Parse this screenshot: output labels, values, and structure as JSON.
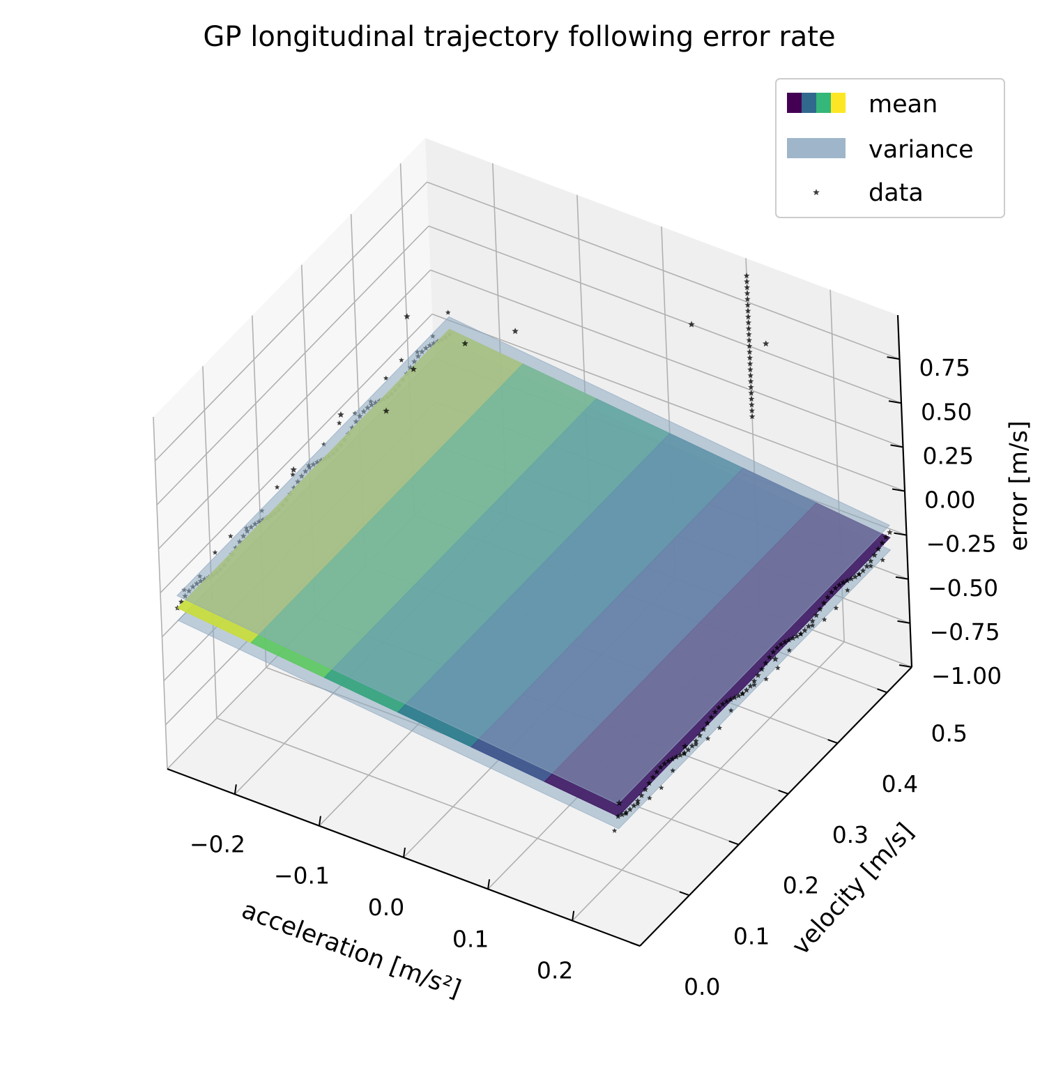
{
  "chart_data": {
    "type": "surface3d",
    "title": "GP longitudinal trajectory following error rate",
    "xlabel": "acceleration [m/s²]",
    "ylabel": "velocity [m/s]",
    "zlabel": "error [m/s]",
    "xlim": [
      -0.28,
      0.28
    ],
    "ylim": [
      0.0,
      0.55
    ],
    "zlim": [
      -1.0,
      1.0
    ],
    "xticks": [
      "−0.2",
      "−0.1",
      "0.0",
      "0.1",
      "0.2"
    ],
    "xtick_values": [
      -0.2,
      -0.1,
      0.0,
      0.1,
      0.2
    ],
    "yticks": [
      "0.0",
      "0.1",
      "0.2",
      "0.3",
      "0.4",
      "0.5"
    ],
    "ytick_values": [
      0.0,
      0.1,
      0.2,
      0.3,
      0.4,
      0.5
    ],
    "zticks": [
      "−1.00",
      "−0.75",
      "−0.50",
      "−0.25",
      "0.00",
      "0.25",
      "0.50",
      "0.75"
    ],
    "ztick_values": [
      -1.0,
      -0.75,
      -0.5,
      -0.25,
      0.0,
      0.25,
      0.5,
      0.75
    ],
    "grid": true,
    "legend_position": "top-right",
    "legend": [
      {
        "label": "mean",
        "kind": "colormap"
      },
      {
        "label": "variance",
        "kind": "patch",
        "color": "#8ea9c1"
      },
      {
        "label": "data",
        "kind": "marker",
        "color": "#000000"
      }
    ],
    "mean_surface": {
      "x_range": [
        -0.26,
        0.26
      ],
      "y_range": [
        0.0,
        0.55
      ],
      "error_at_x_min": -0.05,
      "error_at_x_max": -0.3,
      "colormap": "viridis"
    },
    "variance_band": {
      "half_width": 0.07,
      "color": "#8ea9c1",
      "opacity": 0.55
    },
    "data_points": {
      "bulk_description": "dense along velocity near x=±0.26",
      "outliers": [
        {
          "x": -0.23,
          "y": 0.42,
          "z": 0.45
        },
        {
          "x": -0.2,
          "y": 0.38,
          "z": 0.32
        },
        {
          "x": -0.18,
          "y": 0.45,
          "z": 0.3
        },
        {
          "x": -0.15,
          "y": 0.5,
          "z": 0.28
        },
        {
          "x": -0.24,
          "y": 0.3,
          "z": 0.22
        },
        {
          "x": -0.21,
          "y": 0.34,
          "z": 0.18
        },
        {
          "x": -0.25,
          "y": 0.22,
          "z": 0.12
        },
        {
          "x": 0.05,
          "y": 0.52,
          "z": 0.62
        },
        {
          "x": 0.12,
          "y": 0.55,
          "z": 0.55
        },
        {
          "x": 0.22,
          "y": 0.2,
          "z": -0.55
        },
        {
          "x": 0.24,
          "y": 0.35,
          "z": -0.45
        },
        {
          "x": 0.2,
          "y": 0.1,
          "z": -0.62
        }
      ],
      "vertical_spike": {
        "x": 0.1,
        "y": 0.55,
        "z_range": [
          0.1,
          0.9
        ]
      }
    }
  }
}
